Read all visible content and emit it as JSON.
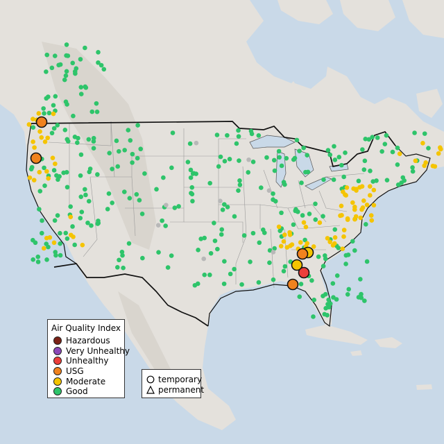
{
  "colors": {
    "water": "#c9d9e8",
    "land": "#e4e1dc",
    "mountain": "#d6d2cb",
    "good": "#2ec46a",
    "moderate": "#f5c400",
    "usg": "#f0821e",
    "unhealthy": "#ec3e3a",
    "very_unhealthy": "#8b48b8",
    "hazardous": "#7b2216",
    "no_data": "#b8b8b8"
  },
  "aqi_legend": {
    "title": "Air Quality Index",
    "items": [
      {
        "label": "Hazardous",
        "color": "#7b2216"
      },
      {
        "label": "Very Unhealthy",
        "color": "#8b48b8"
      },
      {
        "label": "Unhealthy",
        "color": "#ec3e3a"
      },
      {
        "label": "USG",
        "color": "#f0821e"
      },
      {
        "label": "Moderate",
        "color": "#f5c400"
      },
      {
        "label": "Good",
        "color": "#2ec46a"
      }
    ]
  },
  "type_legend": {
    "items": [
      {
        "label": "temporary",
        "shape": "circle-icon"
      },
      {
        "label": "permanent",
        "shape": "triangle-icon"
      }
    ]
  }
}
